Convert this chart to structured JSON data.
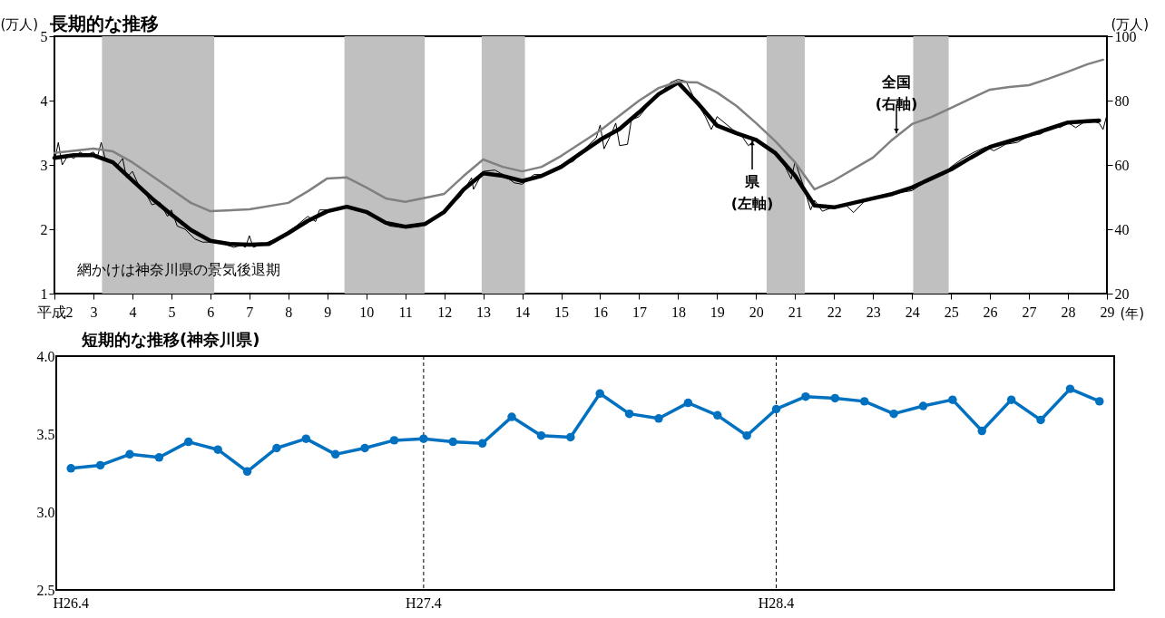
{
  "chart_data": [
    {
      "type": "line",
      "title": "長期的な推移",
      "xlabel": "(年)",
      "ylabel": "(万人)",
      "y2label": "(万人)",
      "xlim": [
        2,
        29
      ],
      "xticks": [
        {
          "value": 2,
          "label": "平成2"
        },
        3,
        4,
        5,
        6,
        7,
        8,
        9,
        10,
        11,
        12,
        13,
        14,
        15,
        16,
        17,
        18,
        19,
        20,
        21,
        22,
        23,
        24,
        25,
        26,
        27,
        28,
        29
      ],
      "ylim": [
        1,
        5
      ],
      "yticks": [
        1,
        2,
        3,
        4,
        5
      ],
      "y2lim": [
        20,
        100
      ],
      "y2ticks": [
        20,
        40,
        60,
        80,
        100
      ],
      "grid": false,
      "bands": [
        {
          "axis": "x",
          "from": 3.22,
          "to": 6.1,
          "color": "#c0c0c0"
        },
        {
          "axis": "x",
          "from": 9.44,
          "to": 11.5,
          "color": "#c0c0c0"
        },
        {
          "axis": "x",
          "from": 12.96,
          "to": 14.07,
          "color": "#c0c0c0"
        },
        {
          "axis": "x",
          "from": 20.27,
          "to": 21.25,
          "color": "#c0c0c0"
        },
        {
          "axis": "x",
          "from": 24.03,
          "to": 24.94,
          "color": "#c0c0c0"
        }
      ],
      "annotations": [
        "網かけは神奈川県の景気後退期",
        {
          "text": "全国\n(右軸)",
          "x": 23.6,
          "y": 3.46
        },
        {
          "text": "県\n(左軸)",
          "x": 19.9,
          "y": 3.41
        }
      ],
      "series": [
        {
          "color": "#000000",
          "x": [
            2,
            2.1,
            2.2,
            2.35,
            2.5,
            2.65,
            2.8,
            3,
            3.1,
            3.2,
            3.3,
            3.6,
            3.75,
            3.85,
            4,
            4.15,
            4.35,
            4.5,
            4.7,
            4.9,
            5,
            5.15,
            5.35,
            5.6,
            5.8,
            6,
            6.3,
            6.6,
            6.8,
            6.9,
            7,
            7.1,
            7.4,
            7.8,
            8.2,
            8.5,
            8.7,
            8.8,
            9.2,
            9.6,
            10,
            10.3,
            10.6,
            11,
            11.4,
            11.7,
            12,
            12.4,
            12.7,
            12.75,
            13,
            13.3,
            13.5,
            13.8,
            14,
            14.3,
            14.6,
            15,
            15.3,
            15.6,
            15.9,
            16,
            16.1,
            16.3,
            16.4,
            16.5,
            16.7,
            16.8,
            17,
            17.3,
            17.6,
            17.8,
            18,
            18.2,
            18.4,
            18.7,
            18.85,
            19,
            19.2,
            19.4,
            19.6,
            19.8,
            20,
            20.4,
            20.6,
            20.9,
            21,
            21.2,
            21.4,
            21.5,
            21.7,
            22,
            22.3,
            22.5,
            22.8,
            23.2,
            23.5,
            24,
            24.5,
            24.8,
            25,
            25.3,
            25.6,
            25.9,
            26.1,
            26.4,
            26.7,
            27,
            27.3,
            27.6,
            27.8,
            28,
            28.2,
            28.5,
            28.8,
            28.9,
            29
          ],
          "values": [
            3.05,
            3.35,
            3,
            3.15,
            3.1,
            3.2,
            3.15,
            3.2,
            3.12,
            3.35,
            3.1,
            2.98,
            3.1,
            2.8,
            2.9,
            2.7,
            2.55,
            2.38,
            2.42,
            2.2,
            2.3,
            2.05,
            2,
            1.85,
            1.8,
            1.8,
            1.78,
            1.72,
            1.75,
            1.72,
            1.9,
            1.72,
            1.78,
            1.88,
            2.05,
            2.2,
            2.12,
            2.3,
            2.3,
            2.35,
            2.28,
            2.15,
            2.05,
            2.02,
            2.05,
            2.15,
            2.27,
            2.5,
            2.8,
            2.62,
            2.9,
            2.92,
            2.85,
            2.72,
            2.7,
            2.85,
            2.85,
            3,
            3.05,
            3.25,
            3.42,
            3.62,
            3.25,
            3.5,
            3.65,
            3.3,
            3.32,
            3.7,
            3.75,
            3.98,
            4.15,
            4.28,
            4.33,
            4.3,
            4.05,
            3.75,
            3.55,
            3.75,
            3.65,
            3.55,
            3.48,
            3.3,
            3.4,
            3.25,
            3.15,
            2.78,
            3.05,
            2.7,
            2.3,
            2.45,
            2.28,
            2.35,
            2.38,
            2.26,
            2.45,
            2.5,
            2.55,
            2.6,
            2.8,
            2.85,
            2.97,
            3.1,
            3.2,
            3.28,
            3.22,
            3.32,
            3.35,
            3.45,
            3.48,
            3.6,
            3.58,
            3.66,
            3.58,
            3.7,
            3.65,
            3.55,
            3.78
          ]
        },
        {
          "color": "#000000",
          "x": [
            2,
            2.5,
            3,
            3.5,
            4,
            4.5,
            5,
            5.5,
            6,
            6.5,
            7,
            7.5,
            8,
            8.5,
            9,
            9.5,
            10,
            10.5,
            11,
            11.5,
            12,
            12.5,
            13,
            13.5,
            14,
            14.5,
            15,
            15.5,
            16,
            16.5,
            17,
            17.5,
            18,
            18.5,
            19,
            19.5,
            20,
            20.5,
            21,
            21.5,
            22,
            22.5,
            23,
            23.5,
            24,
            24.5,
            25,
            25.5,
            26,
            26.5,
            27,
            27.5,
            28,
            28.5,
            28.8
          ],
          "values": [
            3.11,
            3.15,
            3.15,
            3.04,
            2.76,
            2.48,
            2.23,
            1.99,
            1.82,
            1.77,
            1.76,
            1.77,
            1.94,
            2.13,
            2.28,
            2.35,
            2.27,
            2.1,
            2.04,
            2.08,
            2.27,
            2.62,
            2.87,
            2.83,
            2.75,
            2.83,
            2.97,
            3.18,
            3.39,
            3.56,
            3.82,
            4.1,
            4.28,
            3.96,
            3.61,
            3.49,
            3.39,
            3.18,
            2.83,
            2.37,
            2.34,
            2.41,
            2.48,
            2.55,
            2.65,
            2.79,
            2.93,
            3.11,
            3.28,
            3.37,
            3.46,
            3.56,
            3.66,
            3.68,
            3.69
          ]
        },
        {
          "color": "#808080",
          "axis": "y2",
          "x": [
            2,
            3,
            3.5,
            4,
            4.5,
            5,
            5.5,
            6,
            7,
            8,
            8.5,
            9,
            9.5,
            10,
            10.5,
            11,
            12,
            12.5,
            13,
            13.5,
            14,
            14.5,
            15,
            16,
            17,
            17.5,
            18,
            18.5,
            19,
            19.5,
            20,
            20.5,
            21,
            21.5,
            22,
            23,
            23.5,
            24,
            24.5,
            25,
            25.5,
            26,
            26.5,
            27,
            27.5,
            28,
            28.5,
            28.9
          ],
          "values": [
            63.7,
            65.1,
            64.2,
            60.8,
            56.6,
            52.4,
            48.2,
            45.6,
            46.2,
            48.2,
            51.8,
            55.8,
            56.1,
            53,
            49.6,
            48.5,
            51,
            56.6,
            61.7,
            59.4,
            58,
            59.4,
            62.8,
            70.7,
            80,
            83.9,
            85.9,
            85.6,
            82.5,
            78.3,
            73,
            67.3,
            60.8,
            52.4,
            55.2,
            62.3,
            67.9,
            72.7,
            74.9,
            77.7,
            80.6,
            83.4,
            84.2,
            84.8,
            86.8,
            89,
            91.3,
            92.7
          ]
        }
      ]
    },
    {
      "type": "line",
      "title": "短期的な推移(神奈川県)",
      "categories": [
        "H26.4",
        null,
        null,
        null,
        null,
        null,
        null,
        null,
        null,
        null,
        null,
        null,
        "H27.4",
        null,
        null,
        null,
        null,
        null,
        null,
        null,
        null,
        null,
        null,
        null,
        "H28.4",
        null,
        null,
        null,
        null,
        null,
        null,
        null,
        null,
        null,
        null,
        null
      ],
      "ylim": [
        2.5,
        4
      ],
      "yticks": [
        {
          "value": 2.5,
          "label": "2.5"
        },
        {
          "value": 3,
          "label": "3.0"
        },
        {
          "value": 3.5,
          "label": "3.5"
        },
        {
          "value": 4,
          "label": "4.0"
        }
      ],
      "grid": false,
      "marker": "circle",
      "ref_lines": [
        {
          "axis": "x",
          "value": "H27.4",
          "color": "#000000",
          "line_style": "dashed"
        },
        {
          "axis": "x",
          "value": "H28.4",
          "color": "#000000",
          "line_style": "dashed"
        }
      ],
      "series": [
        {
          "color": "#0070c0",
          "values": [
            3.28,
            3.3,
            3.37,
            3.35,
            3.45,
            3.4,
            3.26,
            3.41,
            3.47,
            3.37,
            3.41,
            3.46,
            3.47,
            3.45,
            3.44,
            3.61,
            3.49,
            3.48,
            3.76,
            3.63,
            3.6,
            3.7,
            3.62,
            3.49,
            3.66,
            3.74,
            3.73,
            3.71,
            3.63,
            3.68,
            3.72,
            3.52,
            3.72,
            3.59,
            3.79,
            3.71
          ]
        }
      ]
    }
  ]
}
